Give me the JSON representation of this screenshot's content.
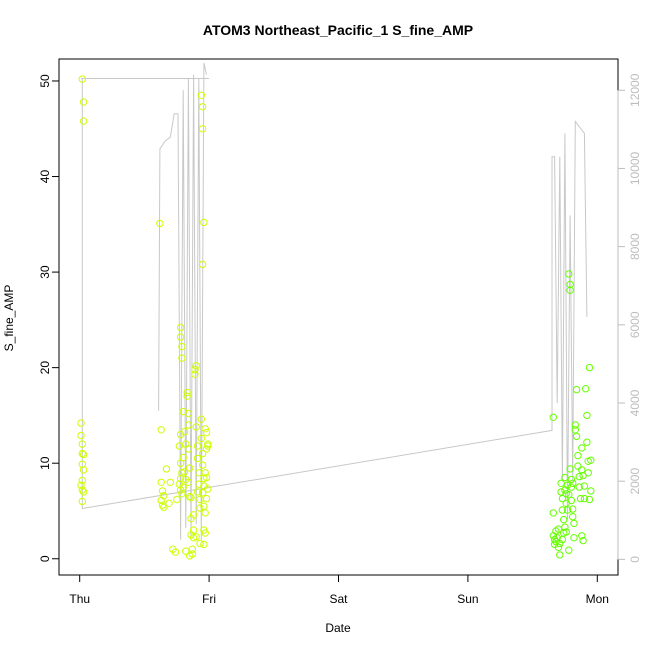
{
  "chart_data": {
    "type": "scatter",
    "title": "ATOM3 Northeast_Pacific_1 S_fine_AMP",
    "xlabel": "Date",
    "ylabel": "S_fine_AMP",
    "x_ticks": [
      "Thu",
      "Fri",
      "Sat",
      "Sun",
      "Mon"
    ],
    "x_tick_values": [
      0,
      1,
      2,
      3,
      4
    ],
    "y_ticks": [
      0,
      10,
      20,
      30,
      40,
      50
    ],
    "ylim": [
      -1.7,
      52.3
    ],
    "y2_ticks": [
      0,
      2000,
      4000,
      6000,
      8000,
      10000,
      12000
    ],
    "y2lim": [
      -400,
      12800
    ],
    "xlim": [
      -0.16,
      4.16
    ],
    "grid": false,
    "legend": "none",
    "colors": {
      "line": "#c8c8c8",
      "points_early": "#ccff00",
      "points_late": "#66ff00",
      "axis": "#000000",
      "right_axis": "#bdbdbd"
    },
    "series": [
      {
        "type": "scatter",
        "points": [
          [
            0.02,
            50.2
          ],
          [
            0.03,
            47.8
          ],
          [
            0.03,
            45.8
          ],
          [
            0.01,
            14.2
          ],
          [
            0.01,
            12.9
          ],
          [
            0.02,
            12.0
          ],
          [
            0.02,
            11.0
          ],
          [
            0.03,
            10.9
          ],
          [
            0.02,
            9.9
          ],
          [
            0.03,
            9.3
          ],
          [
            0.02,
            8.2
          ],
          [
            0.01,
            7.7
          ],
          [
            0.02,
            7.2
          ],
          [
            0.03,
            7.0
          ],
          [
            0.02,
            6.0
          ],
          [
            0.62,
            35.1
          ],
          [
            0.63,
            13.5
          ],
          [
            0.63,
            8.0
          ],
          [
            0.64,
            7.1
          ],
          [
            0.65,
            6.6
          ],
          [
            0.63,
            6.1
          ],
          [
            0.64,
            5.6
          ],
          [
            0.65,
            5.4
          ],
          [
            0.67,
            9.4
          ],
          [
            0.69,
            5.8
          ],
          [
            0.7,
            8.0
          ],
          [
            0.72,
            1.0
          ],
          [
            0.74,
            0.7
          ],
          [
            0.75,
            6.2
          ],
          [
            0.78,
            24.2
          ],
          [
            0.78,
            23.2
          ],
          [
            0.79,
            22.2
          ],
          [
            0.79,
            21.0
          ],
          [
            0.78,
            13.0
          ],
          [
            0.77,
            11.8
          ],
          [
            0.78,
            10.0
          ],
          [
            0.79,
            9.0
          ],
          [
            0.78,
            8.4
          ],
          [
            0.77,
            7.8
          ],
          [
            0.78,
            7.2
          ],
          [
            0.79,
            6.8
          ],
          [
            0.8,
            15.4
          ],
          [
            0.81,
            13.3
          ],
          [
            0.82,
            12.0
          ],
          [
            0.8,
            10.6
          ],
          [
            0.81,
            9.1
          ],
          [
            0.82,
            8.3
          ],
          [
            0.8,
            7.5
          ],
          [
            0.83,
            17.4
          ],
          [
            0.83,
            17.0
          ],
          [
            0.84,
            15.2
          ],
          [
            0.84,
            14.0
          ],
          [
            0.84,
            11.5
          ],
          [
            0.85,
            9.5
          ],
          [
            0.84,
            8.0
          ],
          [
            0.85,
            6.5
          ],
          [
            0.86,
            4.2
          ],
          [
            0.86,
            2.5
          ],
          [
            0.87,
            1.0
          ],
          [
            0.87,
            0.5
          ],
          [
            0.88,
            2.2
          ],
          [
            0.88,
            3.0
          ],
          [
            0.89,
            19.8
          ],
          [
            0.89,
            19.3
          ],
          [
            0.9,
            20.2
          ],
          [
            0.9,
            13.8
          ],
          [
            0.91,
            11.8
          ],
          [
            0.91,
            10.5
          ],
          [
            0.92,
            9.0
          ],
          [
            0.92,
            7.8
          ],
          [
            0.91,
            7.0
          ],
          [
            0.93,
            6.2
          ],
          [
            0.93,
            5.3
          ],
          [
            0.94,
            14.6
          ],
          [
            0.94,
            12.6
          ],
          [
            0.95,
            11.0
          ],
          [
            0.95,
            9.8
          ],
          [
            0.96,
            8.4
          ],
          [
            0.96,
            7.6
          ],
          [
            0.95,
            6.9
          ],
          [
            0.96,
            5.5
          ],
          [
            0.97,
            4.8
          ],
          [
            0.96,
            3.0
          ],
          [
            0.94,
            48.5
          ],
          [
            0.95,
            47.3
          ],
          [
            0.95,
            45.0
          ],
          [
            0.96,
            35.2
          ],
          [
            0.95,
            30.8
          ],
          [
            0.97,
            13.6
          ],
          [
            0.98,
            13.2
          ],
          [
            0.99,
            12.0
          ],
          [
            0.98,
            11.5
          ],
          [
            0.99,
            11.8
          ],
          [
            0.97,
            9.0
          ],
          [
            0.98,
            8.5
          ],
          [
            0.99,
            7.3
          ],
          [
            0.98,
            6.3
          ],
          [
            0.97,
            2.7
          ],
          [
            0.96,
            1.5
          ],
          [
            0.85,
            0.3
          ],
          [
            0.82,
            0.8
          ],
          [
            0.93,
            1.6
          ],
          [
            0.9,
            2.3
          ],
          [
            0.88,
            4.6
          ],
          [
            0.86,
            6.4
          ]
        ]
      },
      {
        "type": "scatter",
        "points": [
          [
            3.66,
            14.8
          ],
          [
            3.66,
            4.8
          ],
          [
            3.66,
            2.4
          ],
          [
            3.67,
            2.0
          ],
          [
            3.67,
            1.5
          ],
          [
            3.68,
            2.9
          ],
          [
            3.68,
            1.8
          ],
          [
            3.69,
            2.2
          ],
          [
            3.7,
            1.2
          ],
          [
            3.71,
            0.4
          ],
          [
            3.71,
            1.6
          ],
          [
            3.72,
            7.9
          ],
          [
            3.72,
            7.0
          ],
          [
            3.73,
            6.3
          ],
          [
            3.73,
            5.1
          ],
          [
            3.74,
            4.1
          ],
          [
            3.74,
            2.7
          ],
          [
            3.75,
            8.5
          ],
          [
            3.75,
            7.2
          ],
          [
            3.76,
            6.8
          ],
          [
            3.76,
            5.8
          ],
          [
            3.77,
            5.1
          ],
          [
            3.77,
            7.7
          ],
          [
            3.78,
            6.7
          ],
          [
            3.78,
            29.8
          ],
          [
            3.79,
            28.7
          ],
          [
            3.79,
            28.1
          ],
          [
            3.79,
            9.4
          ],
          [
            3.8,
            8.3
          ],
          [
            3.8,
            7.5
          ],
          [
            3.8,
            6.1
          ],
          [
            3.81,
            5.2
          ],
          [
            3.81,
            4.4
          ],
          [
            3.82,
            3.7
          ],
          [
            3.82,
            2.2
          ],
          [
            3.83,
            14.0
          ],
          [
            3.83,
            13.5
          ],
          [
            3.84,
            12.8
          ],
          [
            3.84,
            17.7
          ],
          [
            3.85,
            10.8
          ],
          [
            3.85,
            9.7
          ],
          [
            3.86,
            8.6
          ],
          [
            3.86,
            7.5
          ],
          [
            3.87,
            6.3
          ],
          [
            3.88,
            11.6
          ],
          [
            3.88,
            9.3
          ],
          [
            3.89,
            8.7
          ],
          [
            3.9,
            7.6
          ],
          [
            3.9,
            6.3
          ],
          [
            3.91,
            17.8
          ],
          [
            3.92,
            15.0
          ],
          [
            3.92,
            12.2
          ],
          [
            3.93,
            10.2
          ],
          [
            3.93,
            9.0
          ],
          [
            3.94,
            6.2
          ],
          [
            3.94,
            20.0
          ],
          [
            3.95,
            10.3
          ],
          [
            3.95,
            7.1
          ],
          [
            3.88,
            2.4
          ],
          [
            3.89,
            1.9
          ],
          [
            3.76,
            2.8
          ],
          [
            3.78,
            0.9
          ],
          [
            3.7,
            3.1
          ],
          [
            3.73,
            2.0
          ],
          [
            3.75,
            3.3
          ],
          [
            3.81,
            7.9
          ]
        ]
      },
      {
        "type": "line",
        "axis": "right",
        "points": [
          [
            0.01,
            12300
          ],
          [
            1.0,
            12300
          ],
          [
            0.02,
            12300
          ],
          [
            0.02,
            1300
          ],
          [
            3.65,
            3300
          ],
          [
            3.65,
            10300
          ],
          [
            3.67,
            10300
          ],
          [
            3.69,
            4000
          ],
          [
            3.71,
            10300
          ],
          [
            3.73,
            2000
          ],
          [
            3.75,
            10900
          ],
          [
            3.77,
            1000
          ],
          [
            3.79,
            8800
          ],
          [
            3.81,
            2000
          ],
          [
            3.83,
            11200
          ],
          [
            3.9,
            10900
          ],
          [
            3.92,
            6200
          ]
        ]
      },
      {
        "type": "line",
        "axis": "right",
        "points": [
          [
            0.61,
            3800
          ],
          [
            0.62,
            10500
          ],
          [
            0.66,
            10700
          ],
          [
            0.7,
            10800
          ],
          [
            0.73,
            11400
          ],
          [
            0.76,
            11400
          ],
          [
            0.78,
            500
          ],
          [
            0.8,
            12000
          ],
          [
            0.82,
            800
          ],
          [
            0.84,
            12300
          ],
          [
            0.86,
            600
          ],
          [
            0.88,
            12400
          ],
          [
            0.9,
            900
          ],
          [
            0.92,
            12300
          ],
          [
            0.94,
            500
          ],
          [
            0.96,
            12700
          ],
          [
            0.98,
            12400
          ]
        ]
      }
    ]
  }
}
